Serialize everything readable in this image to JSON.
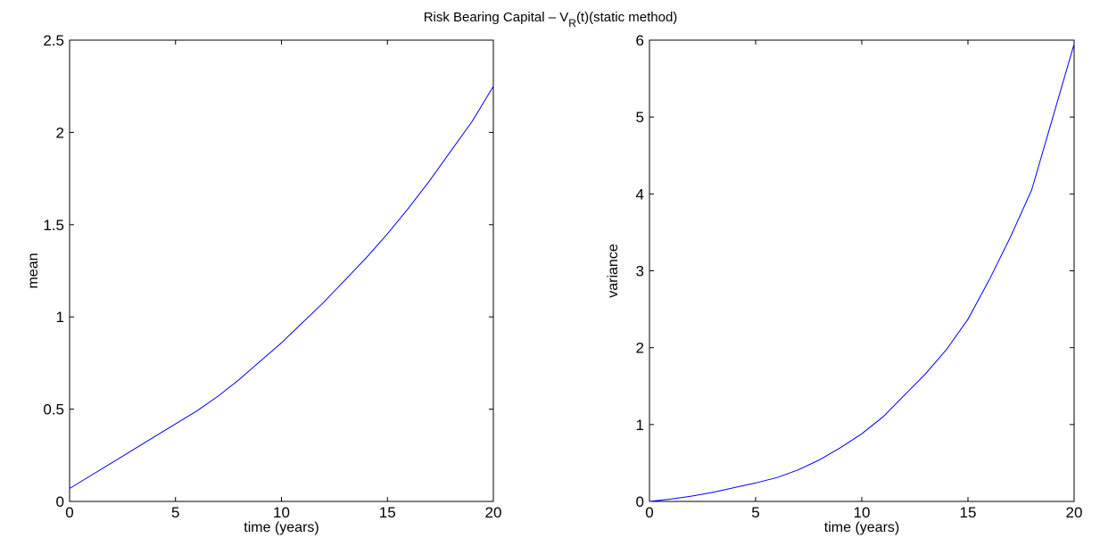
{
  "figure": {
    "title_prefix": "Risk Bearing Capital – V",
    "title_subscript": "R",
    "title_suffix": "(t)(static method)"
  },
  "line_color": "#0000ff",
  "chart_data": [
    {
      "type": "line",
      "xlabel": "time (years)",
      "ylabel": "mean",
      "xlim": [
        0,
        20
      ],
      "ylim": [
        0,
        2.5
      ],
      "xticks": [
        0,
        5,
        10,
        15,
        20
      ],
      "xtick_labels": [
        "0",
        "5",
        "10",
        "15",
        "20"
      ],
      "yticks": [
        0,
        0.5,
        1,
        1.5,
        2,
        2.5
      ],
      "ytick_labels": [
        "0",
        "0.5",
        "1",
        "1.5",
        "2",
        "2.5"
      ],
      "grid": false,
      "series": [
        {
          "x": [
            0,
            1,
            2,
            3,
            4,
            5,
            6,
            7,
            8,
            9,
            10,
            11,
            12,
            13,
            14,
            15,
            16,
            17,
            18,
            19,
            20
          ],
          "y": [
            0.07,
            0.14,
            0.21,
            0.28,
            0.35,
            0.42,
            0.49,
            0.57,
            0.66,
            0.76,
            0.86,
            0.97,
            1.08,
            1.2,
            1.32,
            1.45,
            1.59,
            1.74,
            1.9,
            2.06,
            2.25
          ]
        }
      ]
    },
    {
      "type": "line",
      "xlabel": "time (years)",
      "ylabel": "variance",
      "xlim": [
        0,
        20
      ],
      "ylim": [
        0,
        6
      ],
      "xticks": [
        0,
        5,
        10,
        15,
        20
      ],
      "xtick_labels": [
        "0",
        "5",
        "10",
        "15",
        "20"
      ],
      "yticks": [
        0,
        1,
        2,
        3,
        4,
        5,
        6
      ],
      "ytick_labels": [
        "0",
        "1",
        "2",
        "3",
        "4",
        "5",
        "6"
      ],
      "grid": false,
      "series": [
        {
          "x": [
            0,
            1,
            2,
            3,
            4,
            5,
            6,
            7,
            8,
            9,
            10,
            11,
            12,
            13,
            14,
            15,
            16,
            17,
            18,
            19,
            20
          ],
          "y": [
            0.0,
            0.03,
            0.07,
            0.12,
            0.18,
            0.24,
            0.31,
            0.41,
            0.54,
            0.7,
            0.88,
            1.1,
            1.38,
            1.66,
            1.98,
            2.37,
            2.88,
            3.44,
            4.05,
            5.0,
            5.95
          ]
        }
      ]
    }
  ]
}
